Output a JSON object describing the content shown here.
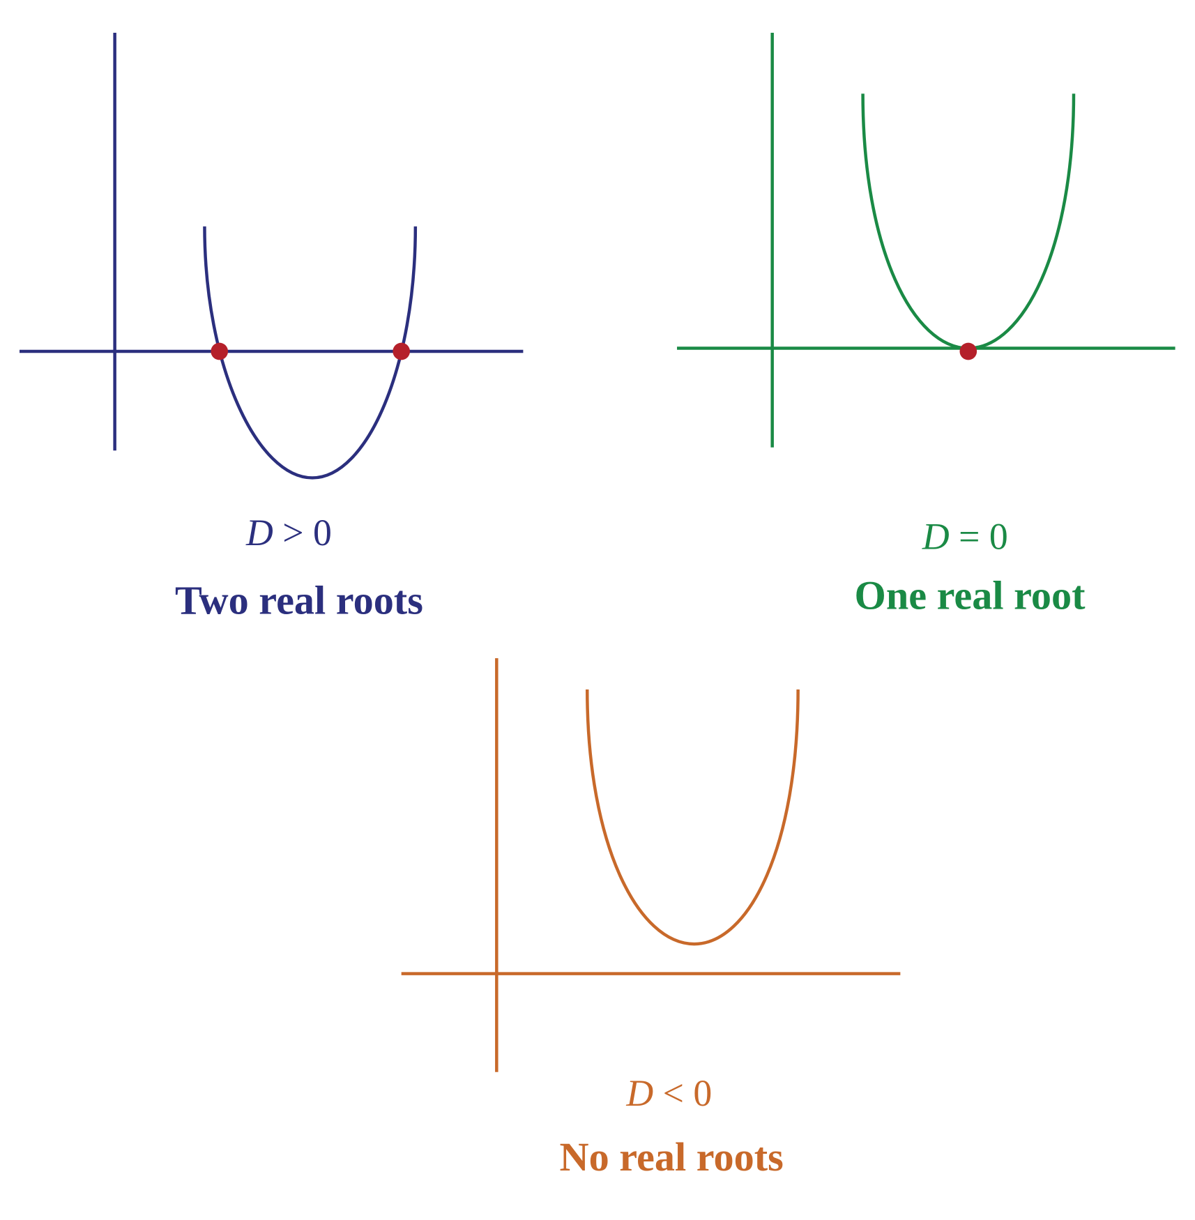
{
  "panels": [
    {
      "condition": {
        "variable": "D",
        "relation": "> 0"
      },
      "caption": "Two real roots"
    },
    {
      "condition": {
        "variable": "D",
        "relation": "= 0"
      },
      "caption": "One real root"
    },
    {
      "condition": {
        "variable": "D",
        "relation": "< 0"
      },
      "caption": "No real roots"
    }
  ]
}
